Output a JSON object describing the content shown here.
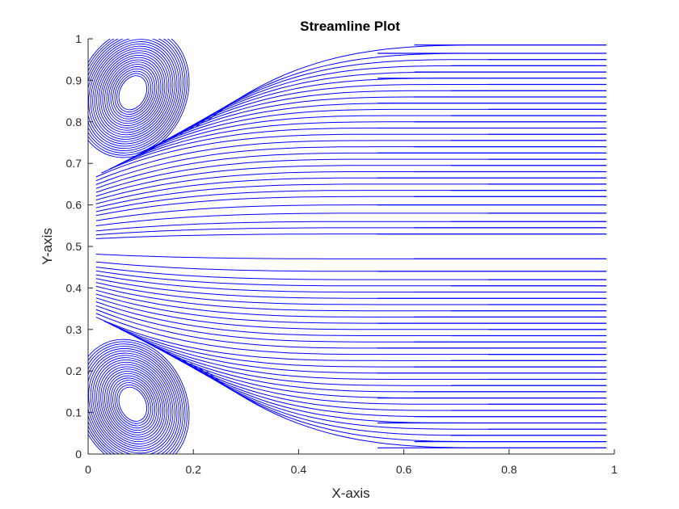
{
  "chart_data": {
    "type": "streamline",
    "title": "Streamline Plot",
    "xlabel": "X-axis",
    "ylabel": "Y-axis",
    "xlim": [
      0,
      1
    ],
    "ylim": [
      0,
      1
    ],
    "xticks": [
      0,
      0.2,
      0.4,
      0.6,
      0.8,
      1
    ],
    "yticks": [
      0,
      0.1,
      0.2,
      0.3,
      0.4,
      0.5,
      0.6,
      0.7,
      0.8,
      0.9,
      1
    ],
    "xtick_labels": [
      "0",
      "0.2",
      "0.4",
      "0.6",
      "0.8",
      "1"
    ],
    "ytick_labels": [
      "0",
      "0.1",
      "0.2",
      "0.3",
      "0.4",
      "0.5",
      "0.6",
      "0.7",
      "0.8",
      "0.9",
      "1"
    ],
    "grid": false,
    "line_color": "#0000ff",
    "axis_color": "#262626",
    "background": "#ffffff",
    "vortices": [
      {
        "center": [
          0.085,
          0.87
        ]
      },
      {
        "center": [
          0.085,
          0.12
        ]
      }
    ],
    "outflow_levels_upper": [
      0.53,
      0.545,
      0.56,
      0.58,
      0.6,
      0.62,
      0.635,
      0.65,
      0.665,
      0.68,
      0.695,
      0.71,
      0.725,
      0.74,
      0.755,
      0.77,
      0.785,
      0.8,
      0.815,
      0.83,
      0.845,
      0.86,
      0.875,
      0.89,
      0.905,
      0.92,
      0.935,
      0.95,
      0.965,
      0.985
    ],
    "outflow_levels_lower": [
      0.015,
      0.03,
      0.045,
      0.06,
      0.075,
      0.09,
      0.105,
      0.12,
      0.135,
      0.15,
      0.165,
      0.18,
      0.195,
      0.21,
      0.225,
      0.24,
      0.255,
      0.27,
      0.285,
      0.3,
      0.315,
      0.33,
      0.345,
      0.36,
      0.375,
      0.39,
      0.405,
      0.42,
      0.44,
      0.47
    ]
  }
}
